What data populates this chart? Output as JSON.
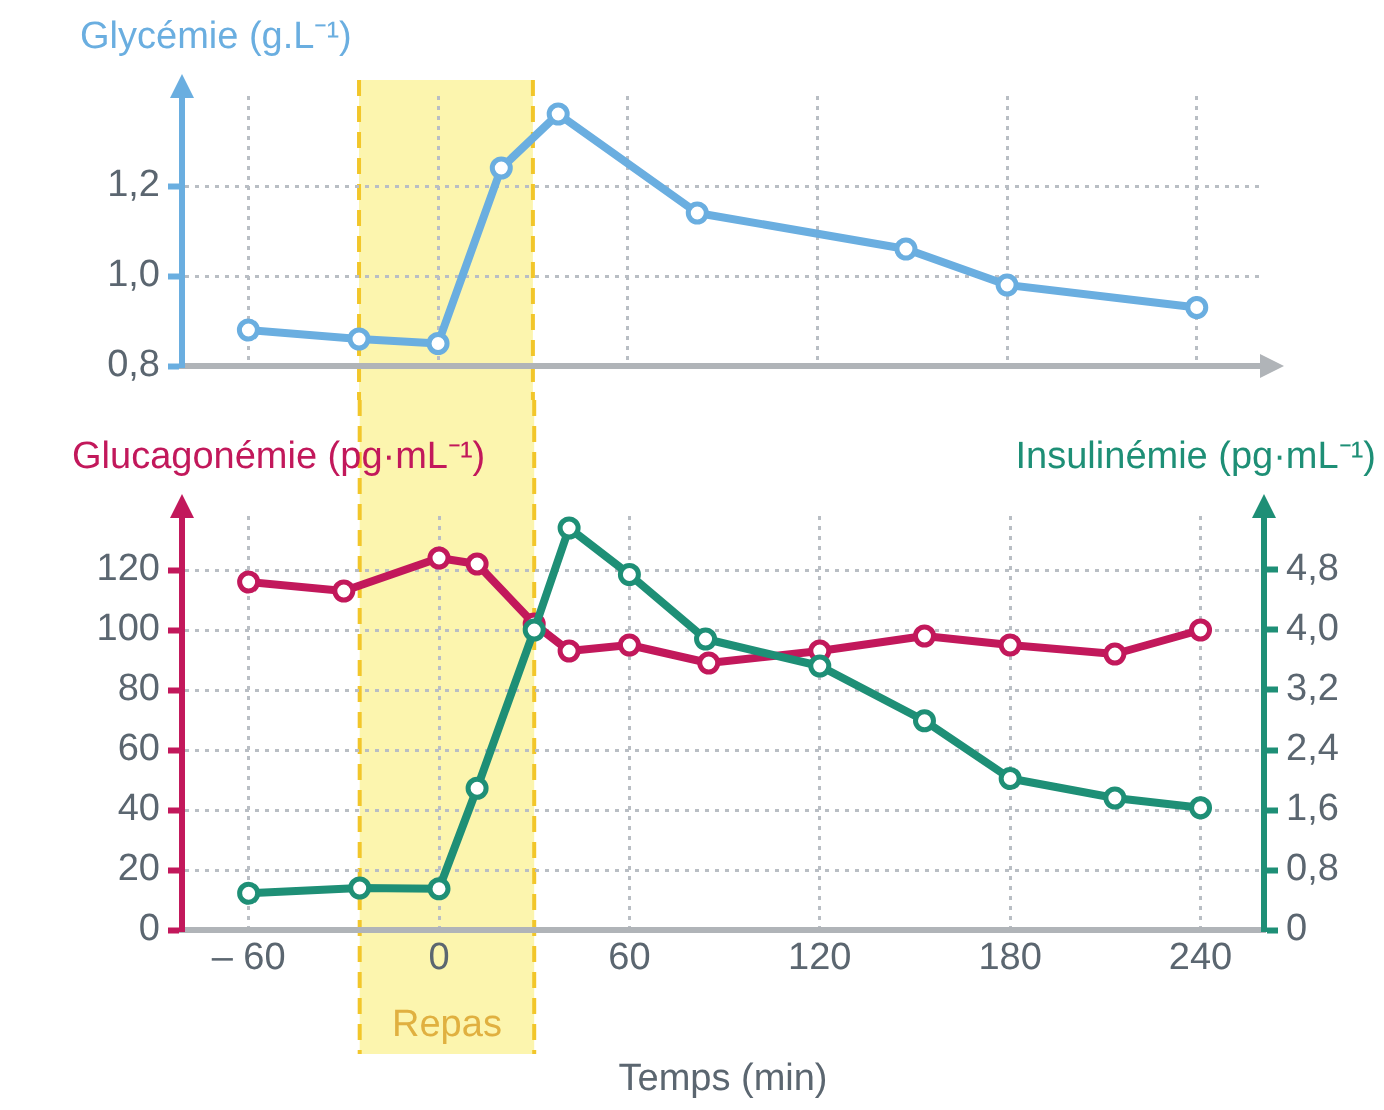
{
  "chart_data": [
    {
      "type": "line",
      "ylabel": "Glycémie (g.L⁻¹)",
      "xlim": [
        -81,
        260
      ],
      "xticks": [
        {
          "value": -60,
          "label": null
        },
        {
          "value": 0,
          "label": null
        },
        {
          "value": 60,
          "label": null
        },
        {
          "value": 120,
          "label": null
        },
        {
          "value": 180,
          "label": null
        },
        {
          "value": 240,
          "label": null
        }
      ],
      "ylim": [
        0.8,
        1.4
      ],
      "yticks": [
        {
          "value": 0.8,
          "label": "0,8"
        },
        {
          "value": 1,
          "label": "1,0"
        },
        {
          "value": 1.2,
          "label": "1,2"
        }
      ],
      "tick_labels": "y",
      "grid": true,
      "marker": "circle",
      "legend": false,
      "bands": [
        {
          "axis": "x",
          "from": -25,
          "to": 30,
          "color": "#fbf3a0"
        }
      ],
      "ref_lines": [
        {
          "axis": "x",
          "value": -25,
          "color": "#f2c62a",
          "line_style": "dashed"
        },
        {
          "axis": "x",
          "value": 30,
          "color": "#f2c62a",
          "line_style": "dashed"
        }
      ],
      "series": [
        {
          "color": "#6aaee0",
          "x": [
            -60,
            -25,
            0,
            20,
            38,
            82,
            148,
            180,
            240
          ],
          "values": [
            0.88,
            0.86,
            0.85,
            1.24,
            1.36,
            1.14,
            1.06,
            0.98,
            0.93
          ]
        }
      ]
    },
    {
      "type": "line",
      "ylabel": "Glucagonémie (pg·mL⁻¹)",
      "y2label": "Insulinémie (pg·mL⁻¹)",
      "xlabel": "Temps (min)",
      "xlim": [
        -81,
        260
      ],
      "xticks": [
        {
          "value": -60,
          "label": "– 60"
        },
        0,
        60,
        120,
        180,
        240
      ],
      "ylim": [
        0,
        138
      ],
      "yticks": [
        0,
        20,
        40,
        60,
        80,
        100,
        120
      ],
      "y2lim": [
        0,
        5.52
      ],
      "y2ticks": [
        0,
        {
          "value": 0.8,
          "label": "0,8"
        },
        {
          "value": 1.6,
          "label": "1,6"
        },
        {
          "value": 2.4,
          "label": "2,4"
        },
        {
          "value": 3.2,
          "label": "3,2"
        },
        {
          "value": 4,
          "label": "4,0"
        },
        {
          "value": 4.8,
          "label": "4,8"
        }
      ],
      "grid": true,
      "marker": "circle",
      "legend": false,
      "bands": [
        {
          "axis": "x",
          "from": -25,
          "to": 30,
          "label": "Repas",
          "color": "#fbf3a0"
        }
      ],
      "ref_lines": [
        {
          "axis": "x",
          "value": -25,
          "color": "#f2c62a",
          "line_style": "dashed"
        },
        {
          "axis": "x",
          "value": 30,
          "color": "#f2c62a",
          "line_style": "dashed"
        }
      ],
      "series": [
        {
          "color": "#c2185b",
          "x": [
            -60,
            -30,
            0,
            12,
            30,
            41,
            60,
            85,
            120,
            153,
            180,
            213,
            240
          ],
          "values": [
            116,
            113,
            124,
            122,
            102,
            93,
            95,
            89,
            93,
            98,
            95,
            92,
            100
          ]
        },
        {
          "color": "#1e8f76",
          "axis": "y2",
          "x": [
            -60,
            -25,
            0,
            12,
            30,
            41,
            60,
            84,
            120,
            153,
            180,
            213,
            240
          ],
          "values": [
            0.49,
            0.56,
            0.55,
            1.89,
            4.0,
            5.36,
            4.74,
            3.88,
            3.52,
            2.79,
            2.02,
            1.76,
            1.63
          ]
        }
      ]
    }
  ]
}
